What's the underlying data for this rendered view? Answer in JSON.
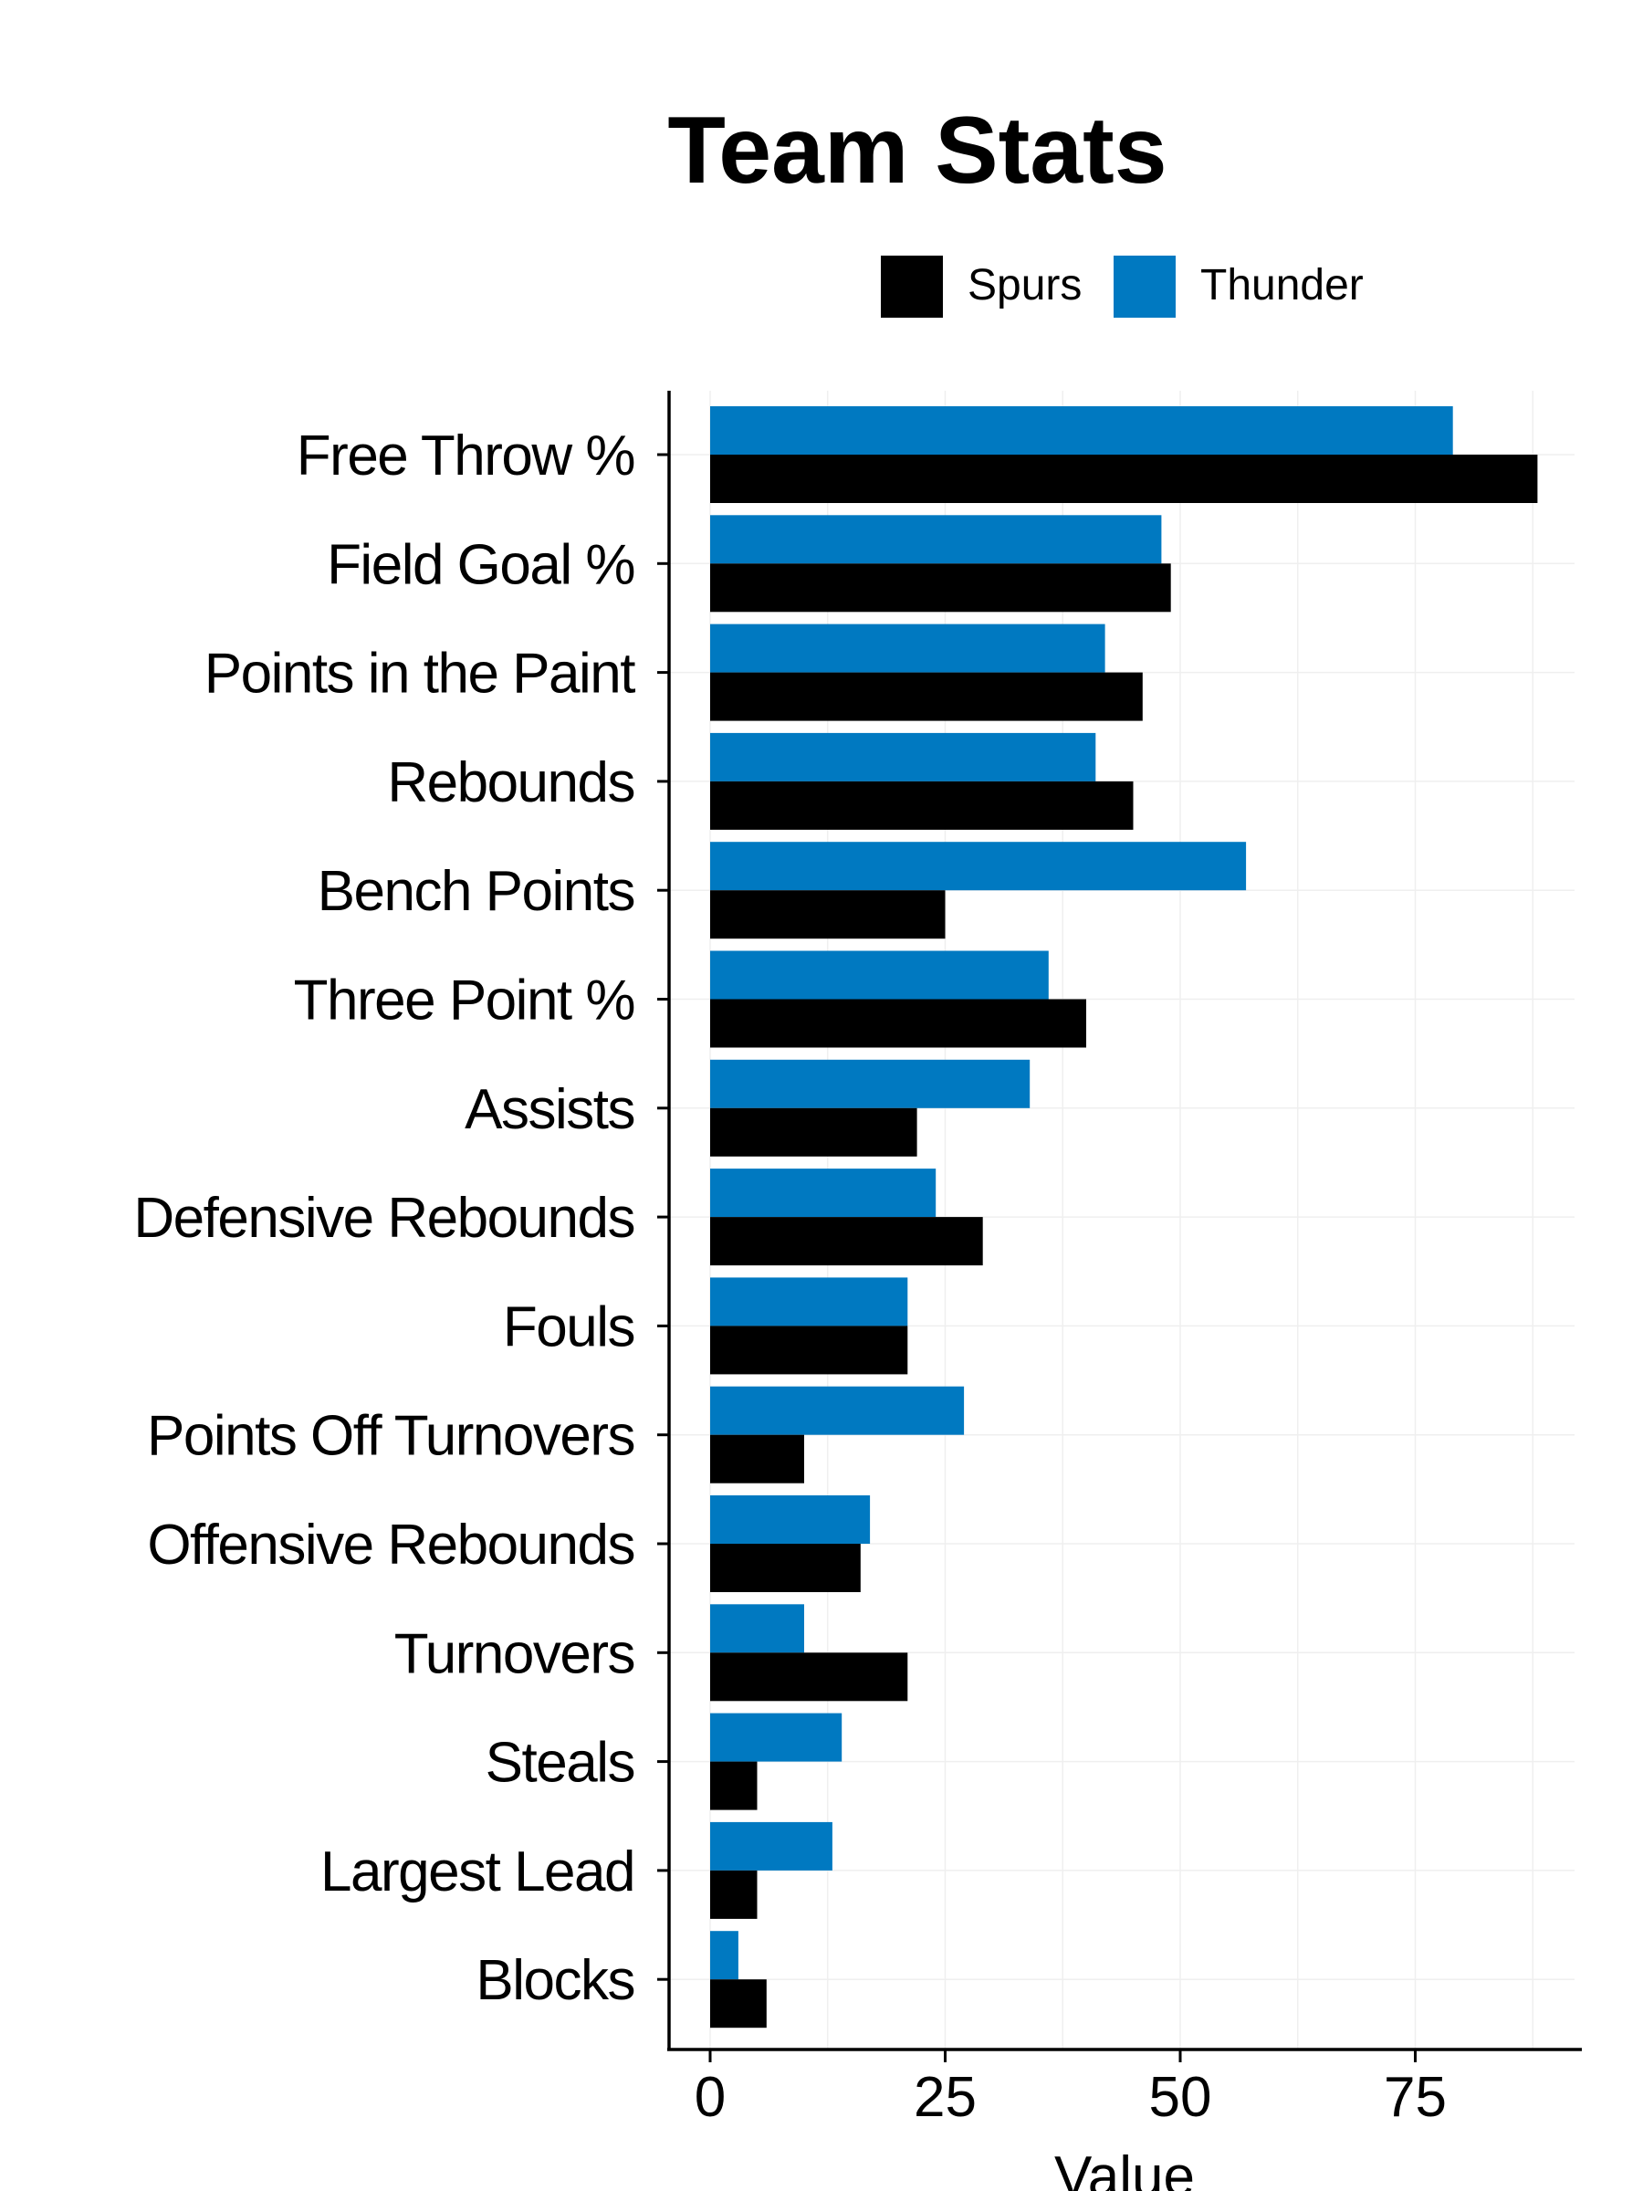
{
  "chart_data": {
    "type": "bar",
    "orientation": "horizontal",
    "title": "Team Stats",
    "xlabel": "Value",
    "ylabel": "",
    "xlim": [
      0,
      92.5
    ],
    "xticks": [
      0,
      25,
      50,
      75
    ],
    "grid": true,
    "legend_placement": "top",
    "categories": [
      "Free Throw %",
      "Field Goal %",
      "Points in the Paint",
      "Rebounds",
      "Bench Points",
      "Three Point %",
      "Assists",
      "Defensive Rebounds",
      "Fouls",
      "Points Off Turnovers",
      "Offensive Rebounds",
      "Turnovers",
      "Steals",
      "Largest Lead",
      "Blocks"
    ],
    "series": [
      {
        "name": "Spurs",
        "color": "#000000",
        "values": [
          88,
          49,
          46,
          45,
          25,
          40,
          22,
          29,
          21,
          10,
          16,
          21,
          5,
          5,
          6
        ]
      },
      {
        "name": "Thunder",
        "color": "#0079C1",
        "values": [
          79,
          48,
          42,
          41,
          57,
          36,
          34,
          24,
          21,
          27,
          17,
          10,
          14,
          13,
          3
        ]
      }
    ]
  }
}
